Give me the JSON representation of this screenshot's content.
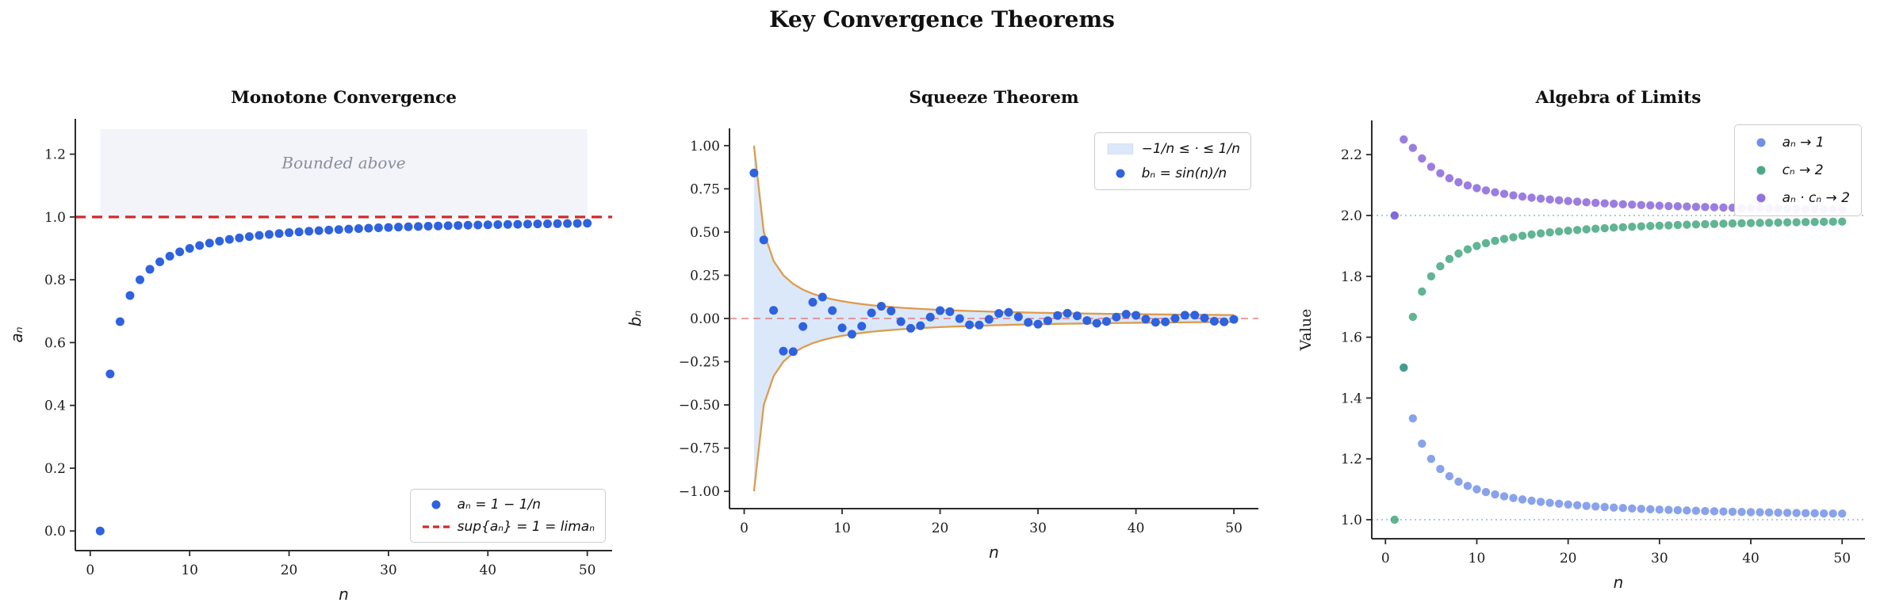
{
  "figure": {
    "title": "Key Convergence Theorems",
    "background": "#ffffff"
  },
  "chart_data": [
    {
      "type": "scatter",
      "title": "Monotone Convergence",
      "xlabel": "n",
      "ylabel": "aₙ",
      "ylabel_math": true,
      "xlim": [
        -1.5,
        52.5
      ],
      "ylim": [
        -0.0625,
        1.3125
      ],
      "xticks": {
        "values": [
          0,
          10,
          20,
          30,
          40,
          50
        ],
        "labels": [
          "0",
          "10",
          "20",
          "30",
          "40",
          "50"
        ]
      },
      "yticks": {
        "values": [
          0.0,
          0.2,
          0.4,
          0.6,
          0.8,
          1.0,
          1.2
        ],
        "labels": [
          "0.0",
          "0.2",
          "0.4",
          "0.6",
          "0.8",
          "1.0",
          "1.2"
        ]
      },
      "band": {
        "x0": 1,
        "x1": 50,
        "y0": 1.0,
        "y1": 1.28,
        "color": "#f3f4f9"
      },
      "annotation": {
        "text": "Bounded above",
        "x": 25.5,
        "y": 1.155,
        "color": "#888e99"
      },
      "hlines": [
        {
          "y": 1.0,
          "color": "#d42a2a",
          "width": 3.2,
          "dash": [
            13,
            8
          ]
        }
      ],
      "series": [
        {
          "name": "a_n = 1 - 1/n",
          "color": "#2e62de",
          "x_from": 1,
          "values": [
            0.0,
            0.5,
            0.6667,
            0.75,
            0.8,
            0.8333,
            0.8571,
            0.875,
            0.8889,
            0.9,
            0.9091,
            0.9167,
            0.9231,
            0.9286,
            0.9333,
            0.9375,
            0.9412,
            0.9444,
            0.9474,
            0.95,
            0.9524,
            0.9545,
            0.9565,
            0.9583,
            0.96,
            0.9615,
            0.963,
            0.9643,
            0.9655,
            0.9667,
            0.9677,
            0.9688,
            0.9697,
            0.9706,
            0.9714,
            0.9722,
            0.973,
            0.9737,
            0.9744,
            0.975,
            0.9756,
            0.9762,
            0.9767,
            0.9773,
            0.9778,
            0.9783,
            0.9787,
            0.9792,
            0.9796,
            0.98
          ]
        }
      ],
      "legend": {
        "position": "bottom-right",
        "items": [
          {
            "swatch": "dot",
            "color": "#2e62de",
            "label": "aₙ = 1 − 1/n"
          },
          {
            "swatch": "dashes",
            "color": "#d42a2a",
            "label": "sup{aₙ} = 1 = limaₙ"
          }
        ]
      }
    },
    {
      "type": "scatter",
      "title": "Squeeze Theorem",
      "xlabel": "n",
      "ylabel": "bₙ",
      "ylabel_math": true,
      "xlim": [
        -1.5,
        52.5
      ],
      "ylim": [
        -1.1,
        1.1
      ],
      "xticks": {
        "values": [
          0,
          10,
          20,
          30,
          40,
          50
        ],
        "labels": [
          "0",
          "10",
          "20",
          "30",
          "40",
          "50"
        ]
      },
      "yticks": {
        "values": [
          1.0,
          0.75,
          0.5,
          0.25,
          0.0,
          -0.25,
          -0.5,
          -0.75,
          -1.0
        ],
        "labels": [
          "1.00",
          "0.75",
          "0.50",
          "0.25",
          "0.00",
          "−0.25",
          "−0.50",
          "−0.75",
          "−1.00"
        ]
      },
      "envelope": {
        "x_from": 1,
        "line_color": "#dd9c4e",
        "fill_color": "#dbe8fa",
        "values_abs": [
          1.0,
          0.5,
          0.3333,
          0.25,
          0.2,
          0.1667,
          0.1429,
          0.125,
          0.1111,
          0.1,
          0.0909,
          0.0833,
          0.0769,
          0.0714,
          0.0667,
          0.0625,
          0.0588,
          0.0556,
          0.0526,
          0.05,
          0.0476,
          0.0455,
          0.0435,
          0.0417,
          0.04,
          0.0385,
          0.037,
          0.0357,
          0.0345,
          0.0333,
          0.0323,
          0.0313,
          0.0303,
          0.0294,
          0.0286,
          0.0278,
          0.027,
          0.0263,
          0.0256,
          0.025,
          0.0244,
          0.0238,
          0.0233,
          0.0227,
          0.0222,
          0.0217,
          0.0213,
          0.0208,
          0.0204,
          0.02
        ]
      },
      "hlines": [
        {
          "y": 0.0,
          "color": "rgba(224,85,85,0.75)",
          "width": 1.6,
          "dash": [
            9,
            6
          ]
        }
      ],
      "series": [
        {
          "name": "b_n = sin(n)/n",
          "color": "#2e62de",
          "x_from": 1,
          "values": [
            0.8415,
            0.4546,
            0.047,
            -0.1892,
            -0.1918,
            -0.0466,
            0.0939,
            0.1237,
            0.0458,
            -0.0544,
            -0.0909,
            -0.0447,
            0.0323,
            0.0708,
            0.0434,
            -0.018,
            -0.0566,
            -0.0417,
            0.0079,
            0.0456,
            0.0398,
            -0.0004,
            -0.0368,
            -0.0377,
            -0.0053,
            0.0293,
            0.0354,
            0.0097,
            -0.0229,
            -0.0329,
            -0.013,
            0.0172,
            0.0303,
            0.0156,
            -0.0122,
            -0.0276,
            -0.0174,
            0.0078,
            0.0247,
            0.0186,
            -0.0039,
            -0.0218,
            -0.0193,
            0.0004,
            0.0189,
            0.0196,
            0.0026,
            -0.016,
            -0.0195,
            -0.0052
          ]
        }
      ],
      "legend": {
        "position": "top-right",
        "items": [
          {
            "swatch": "patch",
            "color": "#dbe8fa",
            "label": "−1/n ≤ · ≤ 1/n"
          },
          {
            "swatch": "dot",
            "color": "#2e62de",
            "label": "bₙ = sin(n)/n"
          }
        ]
      }
    },
    {
      "type": "scatter",
      "title": "Algebra of Limits",
      "xlabel": "n",
      "ylabel": "Value",
      "ylabel_math": false,
      "xlim": [
        -1.5,
        52.5
      ],
      "ylim": [
        0.9375,
        2.3125
      ],
      "xticks": {
        "values": [
          0,
          10,
          20,
          30,
          40,
          50
        ],
        "labels": [
          "0",
          "10",
          "20",
          "30",
          "40",
          "50"
        ]
      },
      "yticks": {
        "values": [
          1.0,
          1.2,
          1.4,
          1.6,
          1.8,
          2.0,
          2.2
        ],
        "labels": [
          "1.0",
          "1.2",
          "1.4",
          "1.6",
          "1.8",
          "2.0",
          "2.2"
        ]
      },
      "hlines": [
        {
          "y": 2.0,
          "color": "#84c9ab",
          "width": 1.6,
          "dash": [
            2,
            4
          ]
        },
        {
          "y": 1.0,
          "color": "#97b0e9",
          "width": 1.6,
          "dash": [
            2,
            4
          ]
        }
      ],
      "series": [
        {
          "name": "a_n -> 1",
          "color": "rgba(65,105,225,0.62)",
          "x_from": 1,
          "values": [
            2.0,
            1.5,
            1.3333,
            1.25,
            1.2,
            1.1667,
            1.1429,
            1.125,
            1.1111,
            1.1,
            1.0909,
            1.0833,
            1.0769,
            1.0714,
            1.0667,
            1.0625,
            1.0588,
            1.0556,
            1.0526,
            1.05,
            1.0476,
            1.0455,
            1.0435,
            1.0417,
            1.04,
            1.0385,
            1.037,
            1.0357,
            1.0345,
            1.0333,
            1.0323,
            1.0313,
            1.0303,
            1.0294,
            1.0286,
            1.0278,
            1.027,
            1.0263,
            1.0256,
            1.025,
            1.0244,
            1.0238,
            1.0233,
            1.0227,
            1.0222,
            1.0217,
            1.0213,
            1.0208,
            1.0204,
            1.02
          ]
        },
        {
          "name": "c_n -> 2",
          "color": "rgba(44,155,112,0.75)",
          "x_from": 1,
          "values": [
            1.0,
            1.5,
            1.6667,
            1.75,
            1.8,
            1.8333,
            1.8571,
            1.875,
            1.8889,
            1.9,
            1.9091,
            1.9167,
            1.9231,
            1.9286,
            1.9333,
            1.9375,
            1.9412,
            1.9444,
            1.9474,
            1.95,
            1.9524,
            1.9545,
            1.9565,
            1.9583,
            1.96,
            1.9615,
            1.963,
            1.9643,
            1.9655,
            1.9667,
            1.9677,
            1.9688,
            1.9697,
            1.9706,
            1.9714,
            1.9722,
            1.973,
            1.9737,
            1.9744,
            1.975,
            1.9756,
            1.9762,
            1.9767,
            1.9773,
            1.9778,
            1.9783,
            1.9787,
            1.9792,
            1.9796,
            1.98
          ]
        },
        {
          "name": "a_n * c_n -> 2",
          "color": "rgba(127,88,218,0.78)",
          "x_from": 1,
          "values": [
            2.0,
            2.25,
            2.2222,
            2.1875,
            2.16,
            2.1389,
            2.1224,
            2.1094,
            2.0988,
            2.09,
            2.0826,
            2.0764,
            2.071,
            2.0663,
            2.0622,
            2.0586,
            2.0554,
            2.0525,
            2.0499,
            2.0475,
            2.0454,
            2.0434,
            2.0416,
            2.0399,
            2.0384,
            2.037,
            2.0357,
            2.0344,
            2.0333,
            2.0322,
            2.0312,
            2.0303,
            2.0294,
            2.0285,
            2.0278,
            2.027,
            2.0263,
            2.0256,
            2.025,
            2.0244,
            2.0238,
            2.0232,
            2.0227,
            2.0222,
            2.0217,
            2.0213,
            2.0208,
            2.0204,
            2.02,
            2.0196
          ]
        }
      ],
      "legend": {
        "position": "top-right",
        "items": [
          {
            "swatch": "dot",
            "color": "rgba(65,105,225,0.75)",
            "label": "aₙ → 1"
          },
          {
            "swatch": "dot",
            "color": "rgba(44,155,112,0.85)",
            "label": "cₙ → 2"
          },
          {
            "swatch": "dot",
            "color": "rgba(127,88,218,0.85)",
            "label": "aₙ · cₙ → 2"
          }
        ]
      }
    }
  ]
}
